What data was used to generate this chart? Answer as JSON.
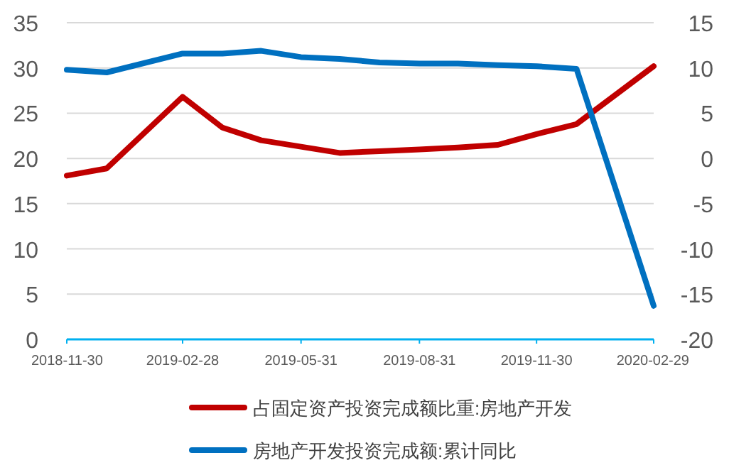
{
  "chart_data": {
    "type": "line",
    "x": [
      "2018-11-30",
      "2018-12-31",
      "2019-02-28",
      "2019-03-31",
      "2019-04-30",
      "2019-05-31",
      "2019-06-30",
      "2019-07-31",
      "2019-08-31",
      "2019-09-30",
      "2019-10-31",
      "2019-11-30",
      "2019-12-31",
      "2020-02-29"
    ],
    "series": [
      {
        "name": "占固定资产投资完成额比重:房地产开发",
        "color": "#c00000",
        "values": [
          18.1,
          18.9,
          26.8,
          23.4,
          22.0,
          21.3,
          20.6,
          20.8,
          21.0,
          21.2,
          21.5,
          22.7,
          23.8,
          30.2
        ]
      },
      {
        "name": "房地产开发投资完成额:累计同比",
        "color": "#0070c0",
        "axis": "y2",
        "values": [
          9.8,
          9.5,
          11.6,
          11.6,
          11.9,
          11.2,
          11.0,
          10.6,
          10.5,
          10.5,
          10.3,
          10.2,
          9.9,
          -16.3
        ]
      }
    ],
    "xlim": [
      "2018-11-30",
      "2020-02-29"
    ],
    "xticks": [
      "2018-11-30",
      "2019-02-28",
      "2019-05-31",
      "2019-08-31",
      "2019-11-30",
      "2020-02-29"
    ],
    "ylim": [
      0,
      35
    ],
    "yticks": [
      0,
      5,
      10,
      15,
      20,
      25,
      30,
      35
    ],
    "y2lim": [
      -20,
      15
    ],
    "y2ticks": [
      -20,
      -15,
      -10,
      -5,
      0,
      5,
      10,
      15
    ],
    "grid": "y",
    "legend": "bottom",
    "line_style": "solid",
    "marker": "none"
  }
}
